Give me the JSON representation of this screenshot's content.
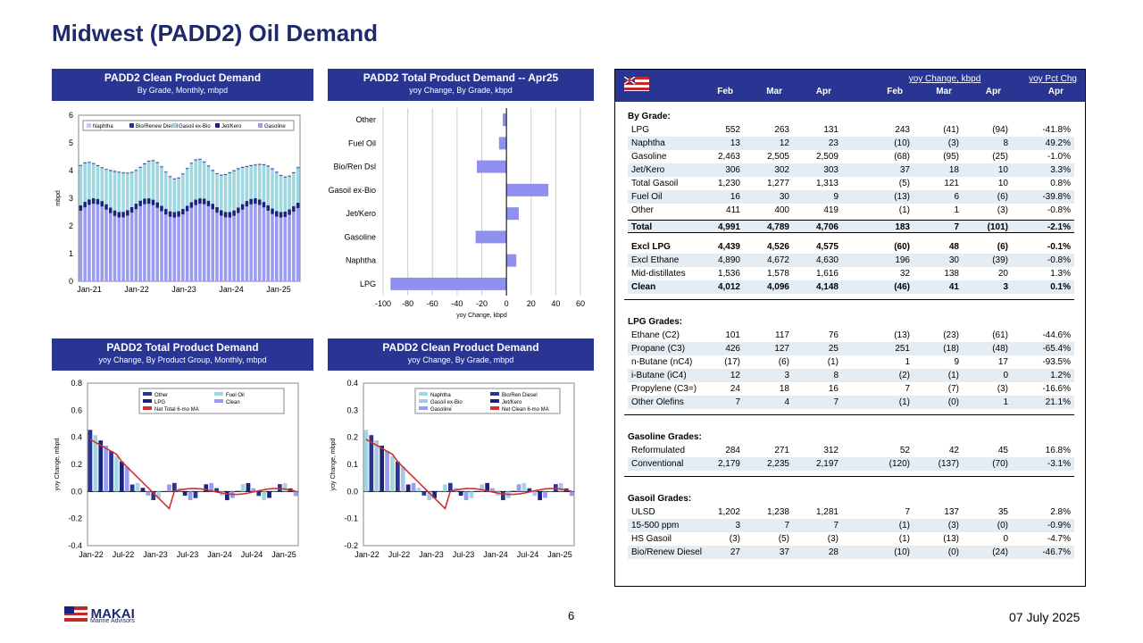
{
  "title": "Midwest (PADD2) Oil Demand",
  "panels": {
    "p1": {
      "a": "PADD2 Clean Product Demand",
      "b": "By Grade, Monthly, mbpd"
    },
    "p2": {
      "a": "PADD2 Total Product Demand -- Apr25",
      "b": "yoy Change, By Grade, kbpd"
    },
    "p3": {
      "a": "PADD2 Total Product Demand",
      "b": "yoy Change, By Product Group, Monthly, mbpd"
    },
    "p4": {
      "a": "PADD2 Clean Product Demand",
      "b": "yoy Change, By Grade, mbpd"
    }
  },
  "table": {
    "grp1": "yoy Change, kbpd",
    "grp2": "yoy Pct Chg",
    "cols": [
      "Feb",
      "Mar",
      "Apr",
      "Feb",
      "Mar",
      "Apr",
      "Apr"
    ],
    "sections": [
      {
        "h": "By Grade:",
        "rows": [
          [
            "LPG",
            "552",
            "263",
            "131",
            "243",
            "(41)",
            "(94)",
            "-41.8%"
          ],
          [
            "Naphtha",
            "13",
            "12",
            "23",
            "(10)",
            "(3)",
            "8",
            "49.2%"
          ],
          [
            "Gasoline",
            "2,463",
            "2,505",
            "2,509",
            "(68)",
            "(95)",
            "(25)",
            "-1.0%"
          ],
          [
            "Jet/Kero",
            "306",
            "302",
            "303",
            "37",
            "18",
            "10",
            "3.3%"
          ],
          [
            "Total Gasoil",
            "1,230",
            "1,277",
            "1,313",
            "(5)",
            "121",
            "10",
            "0.8%"
          ],
          [
            "Fuel Oil",
            "16",
            "30",
            "9",
            "(13)",
            "6",
            "(6)",
            "-39.8%"
          ],
          [
            "Other",
            "411",
            "400",
            "419",
            "(1)",
            "1",
            "(3)",
            "-0.8%"
          ],
          [
            "Total",
            "4,991",
            "4,789",
            "4,706",
            "183",
            "7",
            "(101)",
            "-2.1%"
          ],
          [
            "Excl LPG",
            "4,439",
            "4,526",
            "4,575",
            "(60)",
            "48",
            "(6)",
            "-0.1%"
          ],
          [
            "Excl Ethane",
            "4,890",
            "4,672",
            "4,630",
            "196",
            "30",
            "(39)",
            "-0.8%"
          ],
          [
            "Mid-distillates",
            "1,536",
            "1,578",
            "1,616",
            "32",
            "138",
            "20",
            "1.3%"
          ],
          [
            "Clean",
            "4,012",
            "4,096",
            "4,148",
            "(46)",
            "41",
            "3",
            "0.1%"
          ]
        ]
      },
      {
        "h": "LPG Grades:",
        "rows": [
          [
            "Ethane (C2)",
            "101",
            "117",
            "76",
            "(13)",
            "(23)",
            "(61)",
            "-44.6%"
          ],
          [
            "Propane (C3)",
            "426",
            "127",
            "25",
            "251",
            "(18)",
            "(48)",
            "-65.4%"
          ],
          [
            "n-Butane (nC4)",
            "(17)",
            "(6)",
            "(1)",
            "1",
            "9",
            "17",
            "-93.5%"
          ],
          [
            "i-Butane (iC4)",
            "12",
            "3",
            "8",
            "(2)",
            "(1)",
            "0",
            "1.2%"
          ],
          [
            "Propylene (C3=)",
            "24",
            "18",
            "16",
            "7",
            "(7)",
            "(3)",
            "-16.6%"
          ],
          [
            "Other Olefins",
            "7",
            "4",
            "7",
            "(1)",
            "(0)",
            "1",
            "21.1%"
          ]
        ]
      },
      {
        "h": "Gasoline Grades:",
        "rows": [
          [
            "Reformulated",
            "284",
            "271",
            "312",
            "52",
            "42",
            "45",
            "16.8%"
          ],
          [
            "Conventional",
            "2,179",
            "2,235",
            "2,197",
            "(120)",
            "(137)",
            "(70)",
            "-3.1%"
          ]
        ]
      },
      {
        "h": "Gasoil Grades:",
        "rows": [
          [
            "ULSD",
            "1,202",
            "1,238",
            "1,281",
            "7",
            "137",
            "35",
            "2.8%"
          ],
          [
            "15-500 ppm",
            "3",
            "7",
            "7",
            "(1)",
            "(3)",
            "(0)",
            "-0.9%"
          ],
          [
            "HS Gasoil",
            "(3)",
            "(5)",
            "(3)",
            "(1)",
            "(13)",
            "0",
            "-4.7%"
          ],
          [
            "Bio/Renew Diesel",
            "27",
            "37",
            "28",
            "(10)",
            "(0)",
            "(24)",
            "-46.7%"
          ]
        ]
      }
    ]
  },
  "footer": {
    "logo": "MAKAI",
    "logo_sub": "Marine Advisors",
    "page": "6",
    "date": "07 July 2025"
  },
  "chart_data": [
    {
      "type": "bar",
      "ylabel": "mbpd",
      "ylim": [
        0,
        6
      ],
      "xticks": [
        "Jan-21",
        "Jan-22",
        "Jan-23",
        "Jan-24",
        "Jan-25"
      ],
      "series": [
        {
          "name": "Naphtha"
        },
        {
          "name": "Bio/Renew Diesel"
        },
        {
          "name": "Gasoil ex-Bio"
        },
        {
          "name": "Jet/Kero"
        },
        {
          "name": "Gasoline"
        }
      ]
    },
    {
      "type": "bar",
      "xlabel": "yoy Change, kbpd",
      "xlim": [
        -100,
        60
      ],
      "categories": [
        "Other",
        "Fuel Oil",
        "Bio/Ren Dsl",
        "Gasoil ex-Bio",
        "Jet/Kero",
        "Gasoline",
        "Naphtha",
        "LPG"
      ],
      "values": [
        -3,
        -6,
        -24,
        34,
        10,
        -25,
        8,
        -94
      ]
    },
    {
      "type": "bar",
      "ylabel": "yoy Change, mbpd",
      "ylim": [
        -0.4,
        0.8
      ],
      "xticks": [
        "Jan-22",
        "Jul-22",
        "Jan-23",
        "Jul-23",
        "Jan-24",
        "Jul-24",
        "Jan-25"
      ],
      "series": [
        {
          "name": "Other"
        },
        {
          "name": "Fuel Oil"
        },
        {
          "name": "LPG"
        },
        {
          "name": "Clean"
        },
        {
          "name": "Net Total 6-mo MA"
        }
      ]
    },
    {
      "type": "bar",
      "ylabel": "yoy Change, mbpd",
      "ylim": [
        -0.2,
        0.4
      ],
      "xticks": [
        "Jan-22",
        "Jul-22",
        "Jan-23",
        "Jul-23",
        "Jan-24",
        "Jul-24",
        "Jan-25"
      ],
      "series": [
        {
          "name": "Naphtha"
        },
        {
          "name": "Bio/Ren Diesel"
        },
        {
          "name": "Gasoil ex-Bio"
        },
        {
          "name": "Jet/Kero"
        },
        {
          "name": "Gasoline"
        },
        {
          "name": "Net Clean 6-mo MA"
        }
      ]
    }
  ]
}
